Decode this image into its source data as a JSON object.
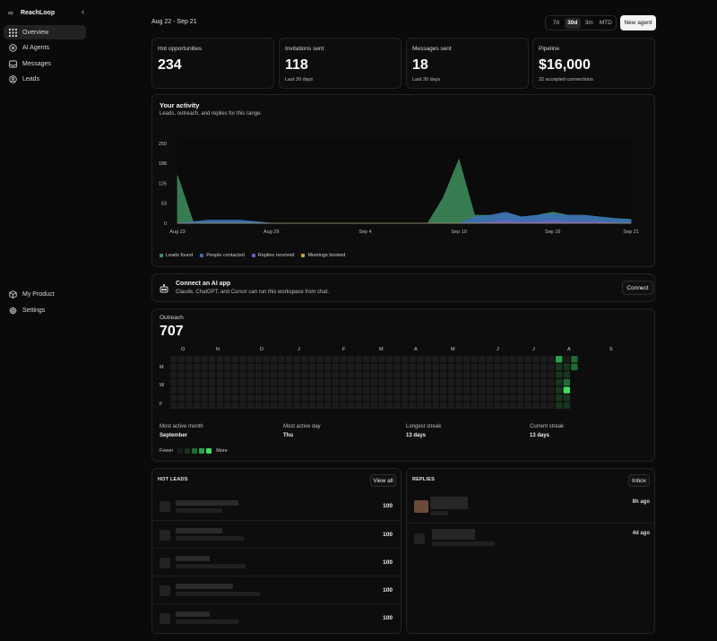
{
  "sidebar": {
    "brand": "ReachLoop",
    "items": [
      {
        "label": "Overview",
        "icon": "grid-icon"
      },
      {
        "label": "AI Agents",
        "icon": "robot-icon"
      },
      {
        "label": "Messages",
        "icon": "inbox-icon"
      },
      {
        "label": "Leads",
        "icon": "users-icon"
      }
    ],
    "bottom_items": [
      {
        "label": "My Product",
        "icon": "box-icon"
      },
      {
        "label": "Settings",
        "icon": "gear-icon"
      }
    ]
  },
  "header": {
    "date_range": "Aug 22 - Sep 21",
    "ranges": [
      "7d",
      "30d",
      "3m",
      "MTD"
    ],
    "selected_range": "30d",
    "new_agent": "New agent"
  },
  "stats": [
    {
      "label": "Hot opportunities",
      "value": "234",
      "sub": ""
    },
    {
      "label": "Invitations sent",
      "value": "118",
      "sub": "Last 30 days"
    },
    {
      "label": "Messages sent",
      "value": "18",
      "sub": "Last 30 days"
    },
    {
      "label": "Pipeline",
      "value": "$16,000",
      "sub": "32 accepted connections"
    }
  ],
  "activity": {
    "title": "Your activity",
    "subtitle": "Leads, outreach, and replies for this range."
  },
  "chart_data": {
    "type": "area",
    "x": [
      "Aug 23",
      "Aug 24",
      "Aug 25",
      "Aug 26",
      "Aug 27",
      "Aug 28",
      "Aug 29",
      "Aug 30",
      "Aug 31",
      "Sep 1",
      "Sep 2",
      "Sep 3",
      "Sep 4",
      "Sep 5",
      "Sep 6",
      "Sep 7",
      "Sep 8",
      "Sep 9",
      "Sep 10",
      "Sep 11",
      "Sep 12",
      "Sep 13",
      "Sep 14",
      "Sep 15",
      "Sep 16",
      "Sep 17",
      "Sep 18",
      "Sep 19",
      "Sep 20",
      "Sep 21"
    ],
    "x_tick_labels": [
      "Aug 23",
      "Aug 29",
      "Sep 4",
      "Sep 10",
      "Sep 16",
      "Sep 21"
    ],
    "y_tick_labels": [
      "0",
      "63",
      "125",
      "188",
      "250"
    ],
    "ylim": [
      0,
      250
    ],
    "series": [
      {
        "name": "Leads found",
        "color": "#3f8f5e",
        "values": [
          150,
          5,
          5,
          5,
          5,
          5,
          0,
          0,
          0,
          0,
          0,
          0,
          0,
          0,
          0,
          0,
          0,
          80,
          200,
          25,
          25,
          30,
          20,
          25,
          35,
          25,
          25,
          20,
          15,
          12
        ]
      },
      {
        "name": "People contacted",
        "color": "#3c6fb8",
        "values": [
          0,
          5,
          10,
          10,
          10,
          5,
          0,
          0,
          0,
          0,
          0,
          0,
          0,
          0,
          0,
          0,
          0,
          0,
          0,
          20,
          25,
          35,
          20,
          25,
          30,
          25,
          25,
          20,
          15,
          10
        ]
      },
      {
        "name": "Replies received",
        "color": "#6b5fc7",
        "values": [
          0,
          0,
          0,
          0,
          0,
          0,
          0,
          0,
          0,
          0,
          0,
          0,
          0,
          0,
          0,
          0,
          0,
          0,
          0,
          0,
          5,
          10,
          5,
          5,
          10,
          5,
          5,
          5,
          0,
          0
        ]
      },
      {
        "name": "Meetings booked",
        "color": "#c9a53a",
        "values": [
          0,
          0,
          0,
          0,
          0,
          0,
          0,
          0,
          0,
          0,
          0,
          0,
          0,
          0,
          0,
          0,
          0,
          0,
          0,
          0,
          0,
          0,
          0,
          0,
          0,
          0,
          0,
          0,
          0,
          0
        ]
      }
    ]
  },
  "connect": {
    "title": "Connect an AI app",
    "subtitle": "Claude, ChatGPT, and Cursor can run this workspace from chat.",
    "button": "Connect"
  },
  "outreach": {
    "label": "Outreach",
    "value": "707",
    "months": [
      "O",
      "N",
      "D",
      "J",
      "F",
      "M",
      "A",
      "M",
      "J",
      "J",
      "A",
      "S"
    ],
    "days": [
      "M",
      "W",
      "F"
    ],
    "stats": [
      {
        "label": "Most active month",
        "value": "September"
      },
      {
        "label": "Most active day",
        "value": "Thu"
      },
      {
        "label": "Longest streak",
        "value": "13 days"
      },
      {
        "label": "Current streak",
        "value": "13 days"
      }
    ],
    "legend_fewer": "Fewer",
    "legend_more": "More",
    "scale_colors": [
      "#1c1c1c",
      "#17351f",
      "#1f6b33",
      "#2aa148",
      "#3fdc5f"
    ]
  },
  "hot_leads": {
    "title": "HOT LEADS",
    "button": "View all",
    "scores": [
      "100",
      "100",
      "100",
      "100",
      "100"
    ]
  },
  "replies": {
    "title": "REPLIES",
    "button": "Inbox",
    "times": [
      "8h ago",
      "4d ago"
    ]
  }
}
